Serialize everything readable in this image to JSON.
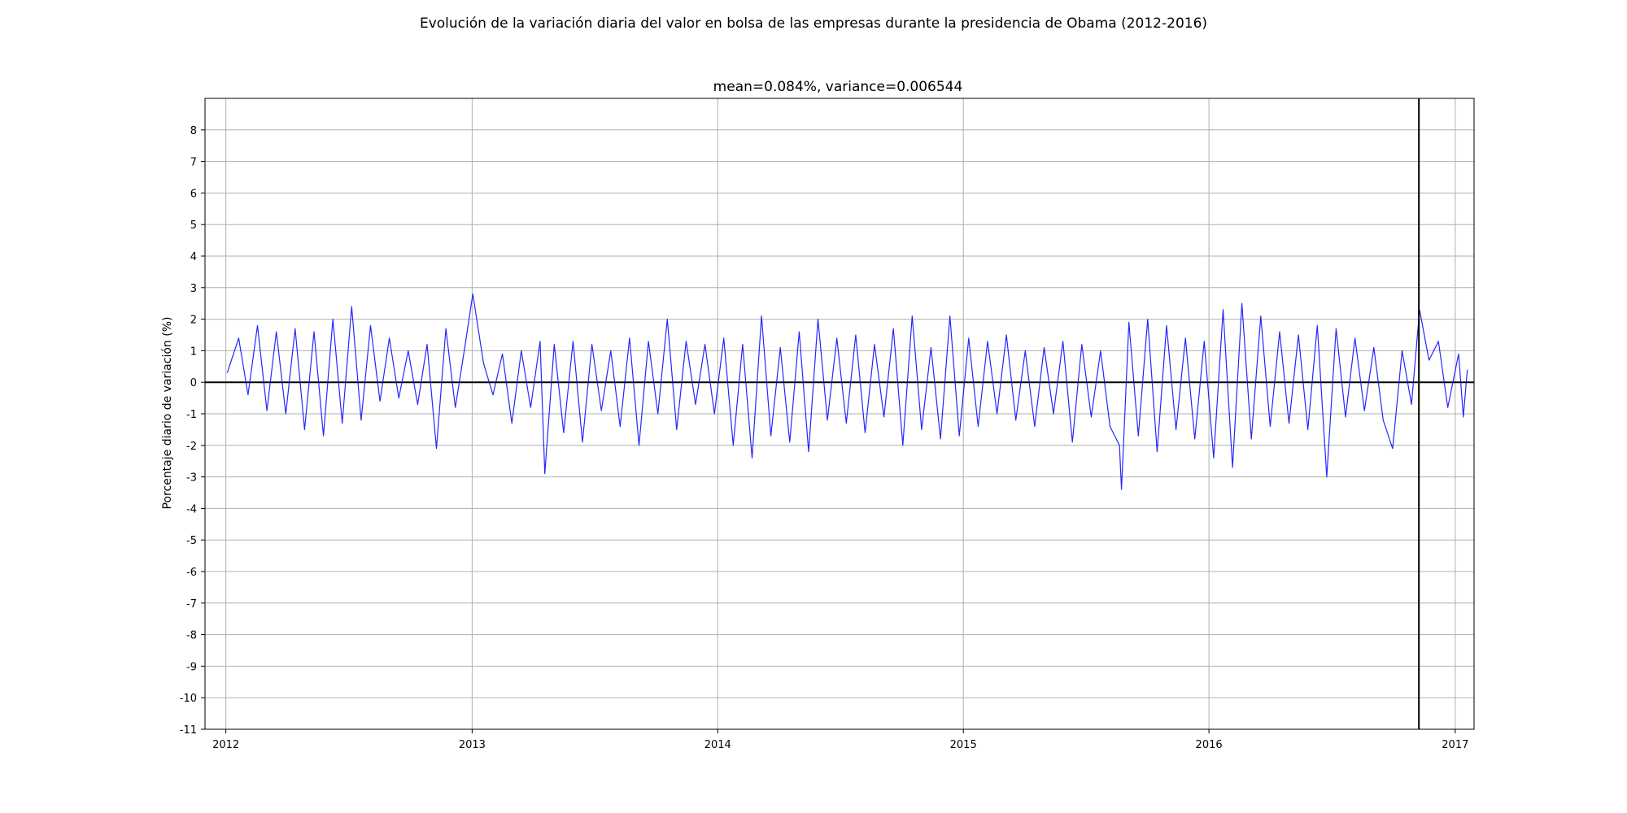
{
  "figure": {
    "suptitle": "Evolución de la variación diaria del valor en bolsa de las empresas durante la presidencia de Obama (2012-2016)"
  },
  "chart_data": {
    "type": "line",
    "title": "mean=0.084%, variance=0.006544",
    "xlabel": "",
    "ylabel": "Porcentaje diario de variación (%)",
    "xlim": [
      "2011-12-01",
      "2017-01-29"
    ],
    "ylim": [
      -11,
      9
    ],
    "xticks": [
      "2012",
      "2013",
      "2014",
      "2015",
      "2016",
      "2017"
    ],
    "yticks": [
      "-11",
      "-10",
      "-9",
      "-8",
      "-7",
      "-6",
      "-5",
      "-4",
      "-3",
      "-2",
      "-1",
      "0",
      "1",
      "2",
      "3",
      "4",
      "5",
      "6",
      "7",
      "8"
    ],
    "grid": true,
    "zero_line": 0,
    "vertical_marker": "2016-11-08",
    "colors": {
      "series": "#0000ff",
      "grid": "#b0b0b0",
      "reference": "#000000"
    },
    "series": [
      {
        "name": "",
        "x": [
          "2012-01-03",
          "2012-01-20",
          "2012-02-03",
          "2012-02-17",
          "2012-03-02",
          "2012-03-16",
          "2012-03-30",
          "2012-04-13",
          "2012-04-27",
          "2012-05-11",
          "2012-05-25",
          "2012-06-08",
          "2012-06-22",
          "2012-07-06",
          "2012-07-20",
          "2012-08-03",
          "2012-08-17",
          "2012-08-31",
          "2012-09-14",
          "2012-09-28",
          "2012-10-12",
          "2012-10-26",
          "2012-11-09",
          "2012-11-23",
          "2012-12-07",
          "2012-12-21",
          "2013-01-02",
          "2013-01-18",
          "2013-02-01",
          "2013-02-15",
          "2013-03-01",
          "2013-03-15",
          "2013-03-29",
          "2013-04-12",
          "2013-04-19",
          "2013-05-03",
          "2013-05-17",
          "2013-05-31",
          "2013-06-14",
          "2013-06-28",
          "2013-07-12",
          "2013-07-26",
          "2013-08-09",
          "2013-08-23",
          "2013-09-06",
          "2013-09-20",
          "2013-10-04",
          "2013-10-18",
          "2013-11-01",
          "2013-11-15",
          "2013-11-29",
          "2013-12-13",
          "2013-12-27",
          "2014-01-10",
          "2014-01-24",
          "2014-02-07",
          "2014-02-21",
          "2014-03-07",
          "2014-03-21",
          "2014-04-04",
          "2014-04-18",
          "2014-05-02",
          "2014-05-16",
          "2014-05-30",
          "2014-06-13",
          "2014-06-27",
          "2014-07-11",
          "2014-07-25",
          "2014-08-08",
          "2014-08-22",
          "2014-09-05",
          "2014-09-19",
          "2014-10-03",
          "2014-10-17",
          "2014-10-31",
          "2014-11-14",
          "2014-11-28",
          "2014-12-12",
          "2014-12-26",
          "2015-01-09",
          "2015-01-23",
          "2015-02-06",
          "2015-02-20",
          "2015-03-06",
          "2015-03-20",
          "2015-04-03",
          "2015-04-17",
          "2015-05-01",
          "2015-05-15",
          "2015-05-29",
          "2015-06-12",
          "2015-06-26",
          "2015-07-10",
          "2015-07-24",
          "2015-08-07",
          "2015-08-21",
          "2015-08-24",
          "2015-09-04",
          "2015-09-18",
          "2015-10-02",
          "2015-10-16",
          "2015-10-30",
          "2015-11-13",
          "2015-11-27",
          "2015-12-11",
          "2015-12-25",
          "2016-01-08",
          "2016-01-22",
          "2016-02-05",
          "2016-02-19",
          "2016-03-04",
          "2016-03-18",
          "2016-04-01",
          "2016-04-15",
          "2016-04-29",
          "2016-05-13",
          "2016-05-27",
          "2016-06-10",
          "2016-06-24",
          "2016-07-08",
          "2016-07-22",
          "2016-08-05",
          "2016-08-19",
          "2016-09-02",
          "2016-09-16",
          "2016-09-30",
          "2016-10-14",
          "2016-10-28",
          "2016-11-09",
          "2016-11-23",
          "2016-12-07",
          "2016-12-21",
          "2017-01-06",
          "2017-01-13",
          "2017-01-19"
        ],
        "values": [
          0.3,
          1.4,
          -0.4,
          1.8,
          -0.9,
          1.6,
          -1.0,
          1.7,
          -1.5,
          1.6,
          -1.7,
          2.0,
          -1.3,
          2.4,
          -1.2,
          1.8,
          -0.6,
          1.4,
          -0.5,
          1.0,
          -0.7,
          1.2,
          -2.1,
          1.7,
          -0.8,
          1.1,
          2.8,
          0.6,
          -0.4,
          0.9,
          -1.3,
          1.0,
          -0.8,
          1.3,
          -2.9,
          1.2,
          -1.6,
          1.3,
          -1.9,
          1.2,
          -0.9,
          1.0,
          -1.4,
          1.4,
          -2.0,
          1.3,
          -1.0,
          2.0,
          -1.5,
          1.3,
          -0.7,
          1.2,
          -1.0,
          1.4,
          -2.0,
          1.2,
          -2.4,
          2.1,
          -1.7,
          1.1,
          -1.9,
          1.6,
          -2.2,
          2.0,
          -1.2,
          1.4,
          -1.3,
          1.5,
          -1.6,
          1.2,
          -1.1,
          1.7,
          -2.0,
          2.1,
          -1.5,
          1.1,
          -1.8,
          2.1,
          -1.7,
          1.4,
          -1.4,
          1.3,
          -1.0,
          1.5,
          -1.2,
          1.0,
          -1.4,
          1.1,
          -1.0,
          1.3,
          -1.9,
          1.2,
          -1.1,
          1.0,
          -1.4,
          -2.0,
          -3.4,
          1.9,
          -1.7,
          2.0,
          -2.2,
          1.8,
          -1.5,
          1.4,
          -1.8,
          1.3,
          -2.4,
          2.3,
          -2.7,
          2.5,
          -1.8,
          2.1,
          -1.4,
          1.6,
          -1.3,
          1.5,
          -1.5,
          1.8,
          -3.0,
          1.7,
          -1.1,
          1.4,
          -0.9,
          1.1,
          -1.2,
          -2.1,
          1.0,
          -0.7,
          2.3,
          0.7,
          1.3,
          -0.8,
          0.9,
          -1.1,
          0.4
        ]
      }
    ]
  }
}
